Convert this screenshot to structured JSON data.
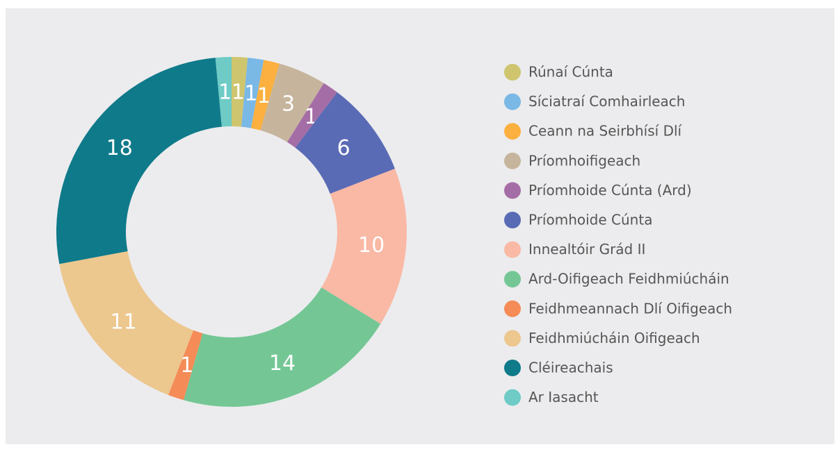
{
  "chart_data": {
    "type": "donut",
    "categories": [
      "Rúnaí Cúnta",
      "Síciatraí Comhairleach",
      "Ceann na Seirbhísí Dlí",
      "Príomhoifigeach",
      "Príomhoide Cúnta (Ard)",
      "Príomhoide Cúnta",
      "Innealtóir Grád II",
      "Ard-Oifigeach Feidhmiúcháin",
      "Feidhmeannach Dlí Oifigeach",
      "Feidhmiúcháin Oifigeach",
      "Cléireachais",
      "Ar Iasacht"
    ],
    "values": [
      1,
      1,
      1,
      3,
      1,
      6,
      10,
      14,
      1,
      11,
      18,
      1
    ],
    "colors": [
      "#cfc56e",
      "#7ab8e6",
      "#fbb040",
      "#c6b59c",
      "#a56da6",
      "#5a6bb5",
      "#f9b9a5",
      "#74c795",
      "#f58b57",
      "#ecc78e",
      "#0f7a8a",
      "#6ecbc6"
    ],
    "legend": "right"
  }
}
